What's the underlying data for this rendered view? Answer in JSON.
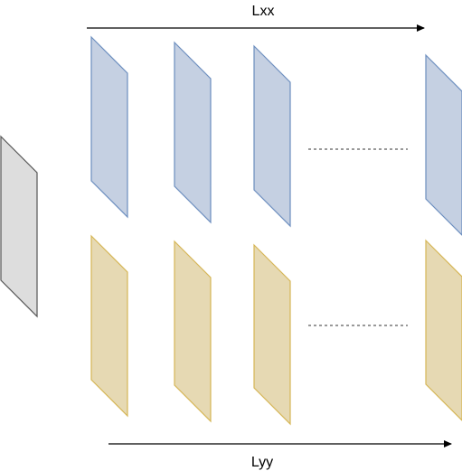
{
  "diagram": {
    "top_axis": {
      "label": "Lxx"
    },
    "bottom_axis": {
      "label": "Lyy"
    },
    "colors": {
      "gray_fill": "#dddddd",
      "gray_stroke": "#555555",
      "blue_fill": "#c5d0e2",
      "blue_stroke": "#6c8ebf",
      "yellow_fill": "#e6d9b3",
      "yellow_stroke": "#d6b656",
      "line": "#000000",
      "ellipsis": "#333333"
    },
    "rows": [
      {
        "name": "blue-row",
        "count_visible": 4,
        "has_ellipsis": true
      },
      {
        "name": "yellow-row",
        "count_visible": 4,
        "has_ellipsis": true
      }
    ]
  }
}
